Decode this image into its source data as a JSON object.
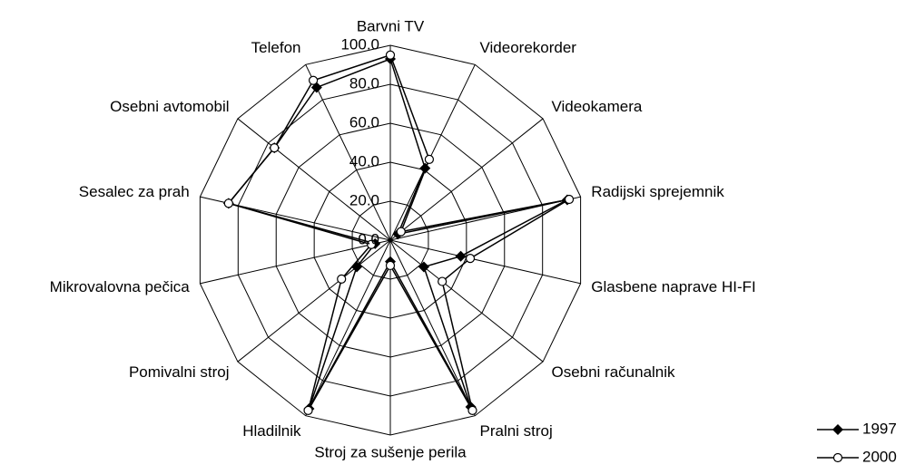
{
  "chart_data": {
    "type": "radar",
    "categories": [
      "Barvni TV",
      "Videorekorder",
      "Videokamera",
      "Radijski sprejemnik",
      "Glasbene naprave HI-FI",
      "Osebni računalnik",
      "Pralni stroj",
      "Stroj za sušenje perila",
      "Hladilnik",
      "Pomivalni stroj",
      "Mikrovalovna pečica",
      "Sesalec za prah",
      "Osebni avtomobil",
      "Telefon"
    ],
    "series": [
      {
        "name": "1997",
        "color": "#000000",
        "marker": "diamond",
        "values": [
          93,
          41,
          5,
          93,
          37,
          22,
          95,
          11,
          96,
          22,
          8,
          85,
          76,
          87
        ]
      },
      {
        "name": "2000",
        "color": "#000000",
        "marker": "circle",
        "values": [
          95,
          46,
          7,
          94,
          42,
          34,
          97,
          13,
          97,
          32,
          10,
          85,
          76,
          91
        ]
      }
    ],
    "ylim": [
      0,
      100
    ],
    "yticks": [
      {
        "value": 0,
        "label": "0.0"
      },
      {
        "value": 20,
        "label": "20.0"
      },
      {
        "value": 40,
        "label": "40.0"
      },
      {
        "value": 60,
        "label": "60.0"
      },
      {
        "value": 80,
        "label": "80.0"
      },
      {
        "value": 100,
        "label": "100.0"
      }
    ],
    "grid": true,
    "legend": "bottom-right"
  }
}
